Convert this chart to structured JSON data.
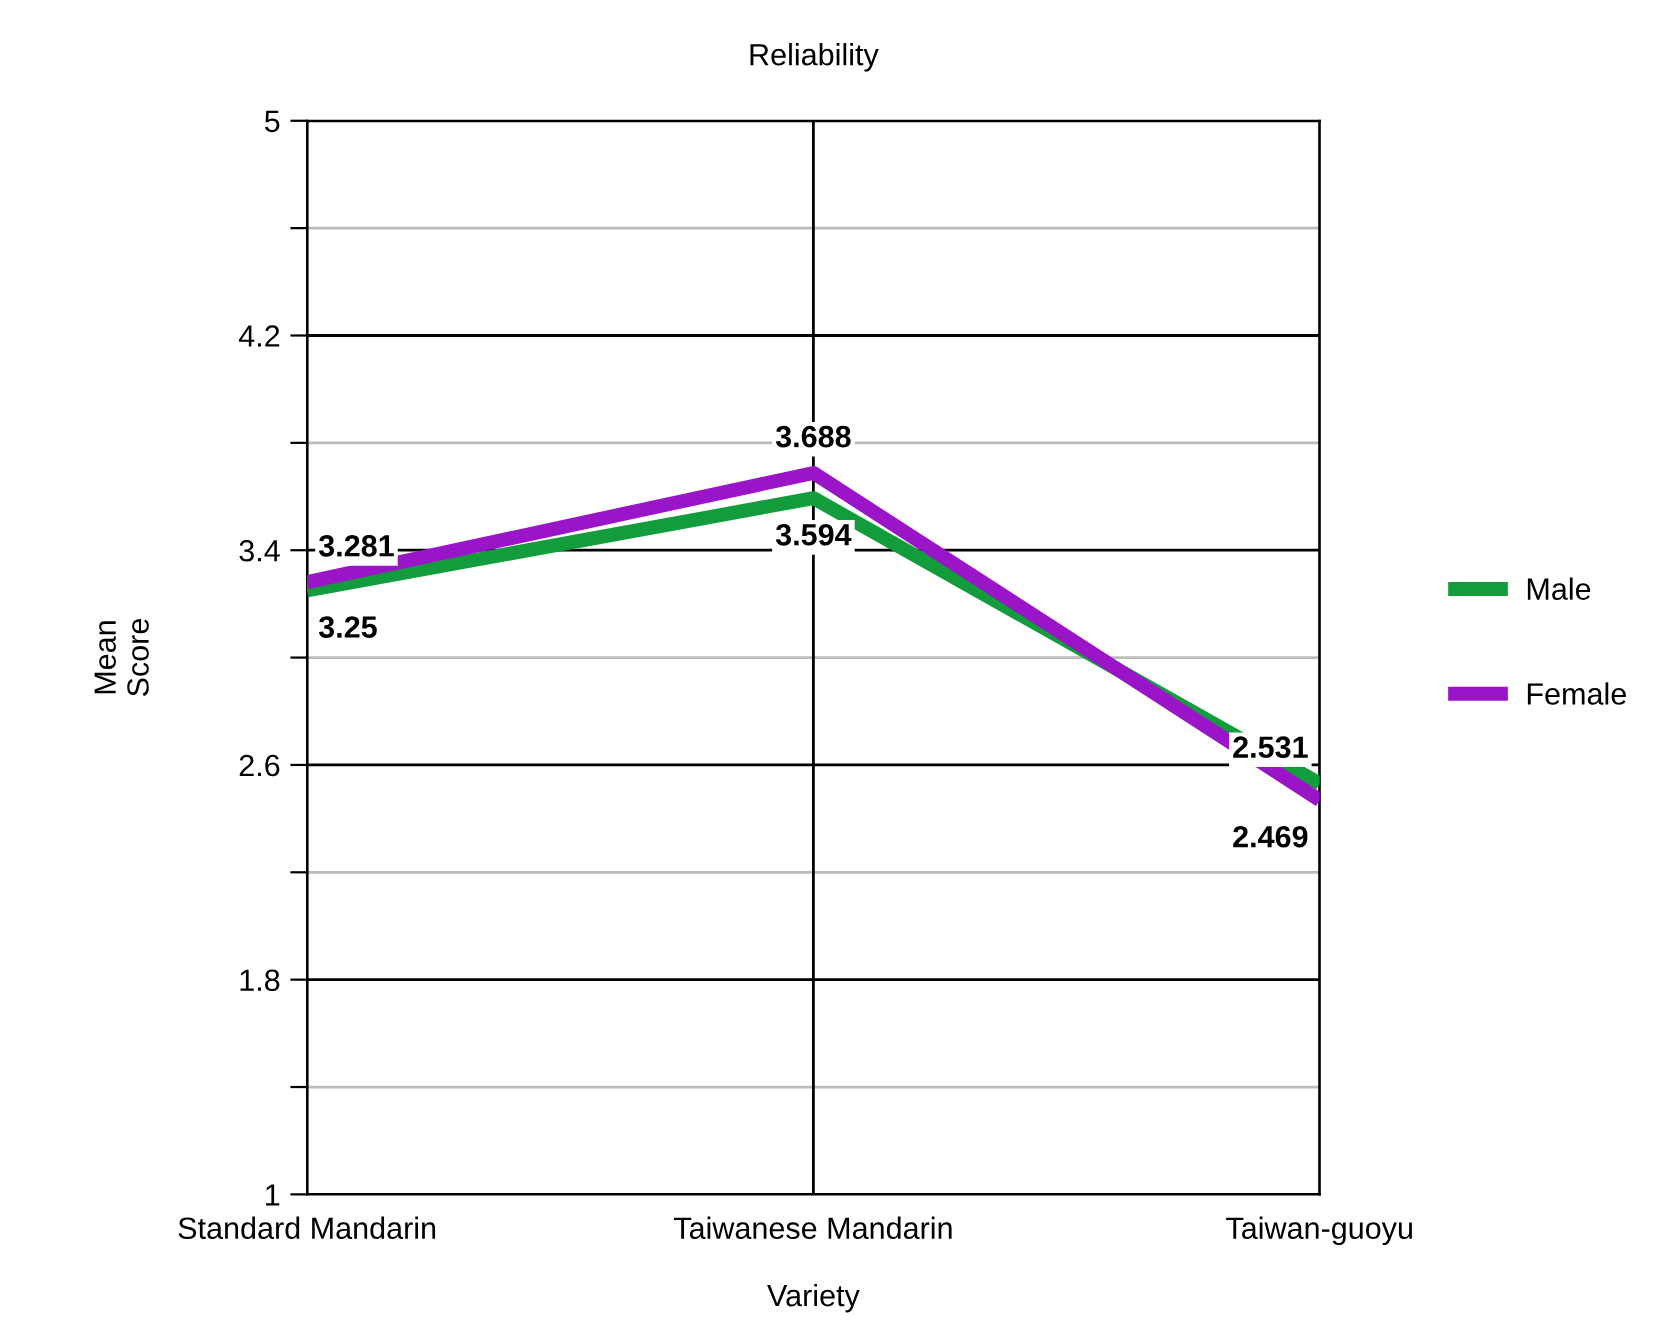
{
  "chart_data": {
    "type": "line",
    "title": "Reliability",
    "xlabel": "Variety",
    "ylabel": "Mean\nScore",
    "categories": [
      "Standard Mandarin",
      "Taiwanese Mandarin",
      "Taiwan-guoyu"
    ],
    "series": [
      {
        "name": "Male",
        "color": "#129c3c",
        "values": [
          3.25,
          3.594,
          2.531
        ]
      },
      {
        "name": "Female",
        "color": "#9a14c8",
        "values": [
          3.281,
          3.688,
          2.469
        ]
      }
    ],
    "ylim": [
      1,
      5
    ],
    "yticks": [
      1,
      {
        "value": 1.4,
        "label": null
      },
      1.8,
      {
        "value": 2.2,
        "label": null
      },
      2.6,
      {
        "value": 3.0,
        "label": null
      },
      3.4,
      {
        "value": 3.8,
        "label": null
      },
      4.2,
      {
        "value": 4.6,
        "label": null
      },
      5
    ],
    "grid": true,
    "legend": "right",
    "data_labels": true,
    "marker": "none",
    "line_style": "solid"
  }
}
